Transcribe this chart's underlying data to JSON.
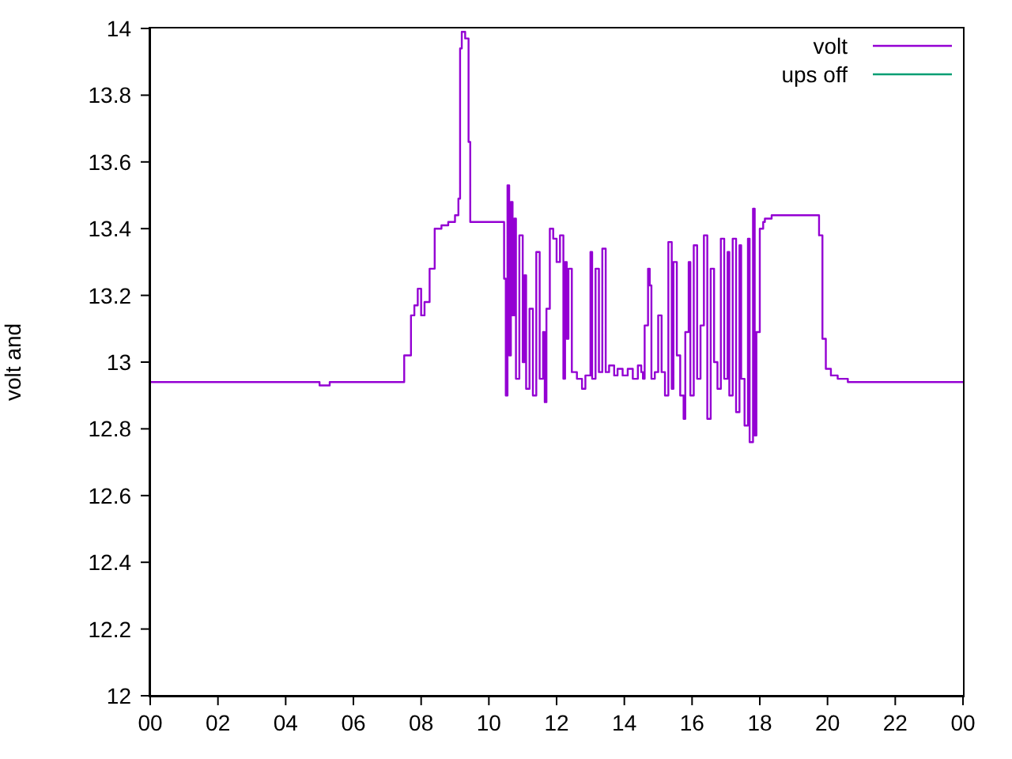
{
  "chart_data": {
    "type": "step",
    "ylabel": "volt and",
    "xlim": [
      0,
      24
    ],
    "xticks": [
      {
        "value": 0,
        "label": "00"
      },
      {
        "value": 2,
        "label": "02"
      },
      {
        "value": 4,
        "label": "04"
      },
      {
        "value": 6,
        "label": "06"
      },
      {
        "value": 8,
        "label": "08"
      },
      {
        "value": 10,
        "label": "10"
      },
      {
        "value": 12,
        "label": "12"
      },
      {
        "value": 14,
        "label": "14"
      },
      {
        "value": 16,
        "label": "16"
      },
      {
        "value": 18,
        "label": "18"
      },
      {
        "value": 20,
        "label": "20"
      },
      {
        "value": 22,
        "label": "22"
      },
      {
        "value": 24,
        "label": "00"
      }
    ],
    "ylim": [
      12,
      14
    ],
    "yticks": [
      12,
      12.2,
      12.4,
      12.6,
      12.8,
      13,
      13.2,
      13.4,
      13.6,
      13.8,
      14
    ],
    "grid": false,
    "legend": "top right",
    "marker": "none",
    "line_style": "solid",
    "series": [
      {
        "name": "volt",
        "color": "#9400d3",
        "x": [
          0,
          5.0,
          5.3,
          7.3,
          7.5,
          7.7,
          7.8,
          7.9,
          8.0,
          8.1,
          8.25,
          8.4,
          8.6,
          8.8,
          9.0,
          9.1,
          9.15,
          9.2,
          9.3,
          9.4,
          9.45,
          10.4,
          10.45,
          10.5,
          10.55,
          10.6,
          10.65,
          10.7,
          10.75,
          10.8,
          10.9,
          11.0,
          11.05,
          11.1,
          11.2,
          11.3,
          11.4,
          11.5,
          11.6,
          11.65,
          11.7,
          11.8,
          11.9,
          12.0,
          12.1,
          12.2,
          12.25,
          12.3,
          12.35,
          12.45,
          12.6,
          12.75,
          12.85,
          13.0,
          13.05,
          13.15,
          13.25,
          13.35,
          13.45,
          13.55,
          13.7,
          13.8,
          13.95,
          14.1,
          14.25,
          14.4,
          14.5,
          14.55,
          14.6,
          14.7,
          14.75,
          14.8,
          14.9,
          15.0,
          15.1,
          15.2,
          15.3,
          15.4,
          15.45,
          15.55,
          15.65,
          15.75,
          15.8,
          15.9,
          15.95,
          16.05,
          16.15,
          16.25,
          16.35,
          16.45,
          16.55,
          16.65,
          16.75,
          16.85,
          16.95,
          17.05,
          17.1,
          17.2,
          17.3,
          17.4,
          17.45,
          17.55,
          17.65,
          17.7,
          17.8,
          17.85,
          17.9,
          18.0,
          18.1,
          18.15,
          18.35,
          18.9,
          19.65,
          19.75,
          19.85,
          19.95,
          20.1,
          20.3,
          20.6,
          24
        ],
        "values": [
          12.94,
          12.93,
          12.94,
          12.94,
          13.02,
          13.14,
          13.17,
          13.22,
          13.14,
          13.18,
          13.28,
          13.4,
          13.41,
          13.42,
          13.44,
          13.49,
          13.94,
          13.99,
          13.97,
          13.66,
          13.42,
          13.42,
          13.25,
          12.9,
          13.53,
          13.02,
          13.48,
          13.14,
          13.43,
          12.95,
          13.38,
          13.0,
          13.26,
          12.92,
          13.16,
          12.9,
          13.33,
          12.95,
          13.09,
          12.88,
          13.16,
          13.4,
          13.37,
          13.3,
          13.38,
          12.95,
          13.3,
          13.07,
          13.28,
          12.97,
          12.95,
          12.92,
          12.96,
          13.33,
          12.95,
          13.28,
          12.97,
          13.34,
          12.97,
          12.99,
          12.96,
          12.98,
          12.96,
          12.98,
          12.95,
          12.99,
          12.97,
          12.95,
          13.11,
          13.28,
          13.23,
          12.95,
          12.97,
          13.14,
          12.97,
          12.9,
          13.36,
          12.92,
          13.3,
          13.02,
          12.9,
          12.83,
          13.09,
          13.3,
          12.9,
          13.35,
          12.95,
          13.11,
          13.38,
          12.83,
          13.28,
          13.0,
          12.92,
          13.37,
          12.95,
          13.33,
          12.9,
          13.37,
          12.85,
          13.35,
          12.95,
          12.81,
          13.37,
          12.76,
          13.46,
          12.78,
          13.09,
          13.4,
          13.42,
          13.43,
          13.44,
          13.44,
          13.44,
          13.38,
          13.07,
          12.98,
          12.96,
          12.95,
          12.94,
          12.94
        ]
      },
      {
        "name": "ups off",
        "color": "#009e73"
      }
    ]
  }
}
